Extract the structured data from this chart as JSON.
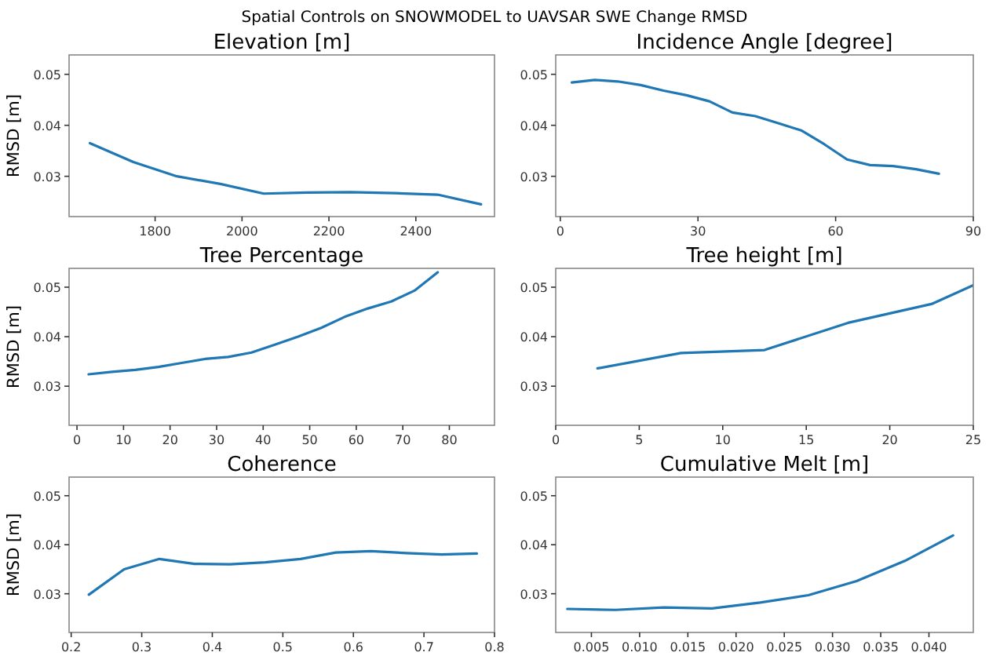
{
  "chart_data": [
    {
      "type": "other",
      "title": "Spatial Controls on SNOWMODEL to UAVSAR SWE Change RMSD"
    },
    {
      "type": "line",
      "title": "Elevation [m]",
      "ylabel": "RMSD [m]",
      "x": [
        1650,
        1750,
        1850,
        1950,
        2050,
        2150,
        2250,
        2350,
        2450,
        2550
      ],
      "series": [
        {
          "color": "#1f77b4",
          "values": [
            0.0365,
            0.0328,
            0.03,
            0.0285,
            0.0266,
            0.0268,
            0.0269,
            0.0267,
            0.0264,
            0.0245
          ]
        }
      ],
      "xlim": [
        1602,
        2581
      ],
      "ylim": [
        0.0221,
        0.0538
      ],
      "xticks": [
        1800,
        2000,
        2200,
        2400
      ],
      "yticks": [
        0.03,
        0.04,
        0.05
      ]
    },
    {
      "type": "line",
      "title": "Incidence Angle [degree]",
      "x": [
        2.5,
        7.5,
        12.5,
        17.5,
        22.5,
        27.5,
        32.5,
        37.5,
        42.5,
        47.5,
        52.5,
        57.5,
        62.5,
        67.5,
        72.5,
        77.5,
        82.5
      ],
      "series": [
        {
          "color": "#1f77b4",
          "values": [
            0.0484,
            0.0489,
            0.0486,
            0.0479,
            0.0468,
            0.0459,
            0.0447,
            0.0425,
            0.0418,
            0.0404,
            0.039,
            0.0363,
            0.0333,
            0.0322,
            0.032,
            0.0314,
            0.0305
          ]
        }
      ],
      "xlim": [
        -1,
        90
      ],
      "ylim": [
        0.0221,
        0.0538
      ],
      "xticks": [
        0,
        30,
        60,
        90
      ],
      "yticks": [
        0.03,
        0.04,
        0.05
      ]
    },
    {
      "type": "line",
      "title": "Tree Percentage",
      "ylabel": "RMSD [m]",
      "x": [
        2.5,
        7.5,
        12.5,
        17.5,
        22.5,
        27.5,
        32.5,
        37.5,
        42.5,
        47.5,
        52.5,
        57.5,
        62.5,
        67.5,
        72.5,
        77.5
      ],
      "series": [
        {
          "color": "#1f77b4",
          "values": [
            0.0324,
            0.0329,
            0.0333,
            0.0339,
            0.0347,
            0.0355,
            0.0359,
            0.0368,
            0.0384,
            0.04,
            0.0418,
            0.044,
            0.0457,
            0.0471,
            0.0493,
            0.053
          ]
        }
      ],
      "xlim": [
        -1.7,
        89.7
      ],
      "ylim": [
        0.0221,
        0.0538
      ],
      "xticks": [
        0,
        10,
        20,
        30,
        40,
        50,
        60,
        70,
        80
      ],
      "yticks": [
        0.03,
        0.04,
        0.05
      ]
    },
    {
      "type": "line",
      "title": "Tree height [m]",
      "x": [
        2.5,
        7.5,
        12.5,
        17.5,
        22.5,
        25
      ],
      "series": [
        {
          "color": "#1f77b4",
          "values": [
            0.0336,
            0.0367,
            0.0373,
            0.0428,
            0.0466,
            0.0504
          ]
        }
      ],
      "xlim": [
        0,
        25
      ],
      "ylim": [
        0.0221,
        0.0538
      ],
      "xticks": [
        0,
        5,
        10,
        15,
        20,
        25
      ],
      "yticks": [
        0.03,
        0.04,
        0.05
      ]
    },
    {
      "type": "line",
      "title": "Coherence",
      "ylabel": "RMSD [m]",
      "x": [
        0.225,
        0.275,
        0.325,
        0.375,
        0.425,
        0.475,
        0.525,
        0.575,
        0.625,
        0.675,
        0.725,
        0.775
      ],
      "series": [
        {
          "color": "#1f77b4",
          "values": [
            0.0298,
            0.035,
            0.0371,
            0.0361,
            0.036,
            0.0364,
            0.0371,
            0.0384,
            0.0387,
            0.0383,
            0.038,
            0.0382
          ]
        }
      ],
      "xlim": [
        0.197,
        0.8
      ],
      "ylim": [
        0.0221,
        0.0538
      ],
      "xticks": [
        0.2,
        0.3,
        0.4,
        0.5,
        0.6,
        0.7,
        0.8
      ],
      "yticks": [
        0.03,
        0.04,
        0.05
      ]
    },
    {
      "type": "line",
      "title": "Cumulative Melt [m]",
      "x": [
        0.0025,
        0.0075,
        0.0125,
        0.0175,
        0.0225,
        0.0275,
        0.0325,
        0.0375,
        0.0425
      ],
      "series": [
        {
          "color": "#1f77b4",
          "values": [
            0.0269,
            0.0267,
            0.0272,
            0.027,
            0.0282,
            0.0297,
            0.0326,
            0.0367,
            0.0419
          ]
        }
      ],
      "xlim": [
        0.0013,
        0.0446
      ],
      "ylim": [
        0.0221,
        0.0538
      ],
      "xticks": [
        0.005,
        {
          "value": 0.01,
          "label": "0.010"
        },
        0.015,
        {
          "value": 0.02,
          "label": "0.020"
        },
        0.025,
        {
          "value": 0.03,
          "label": "0.030"
        },
        0.035,
        {
          "value": 0.04,
          "label": "0.040"
        }
      ],
      "yticks": [
        0.03,
        0.04,
        0.05
      ]
    }
  ]
}
